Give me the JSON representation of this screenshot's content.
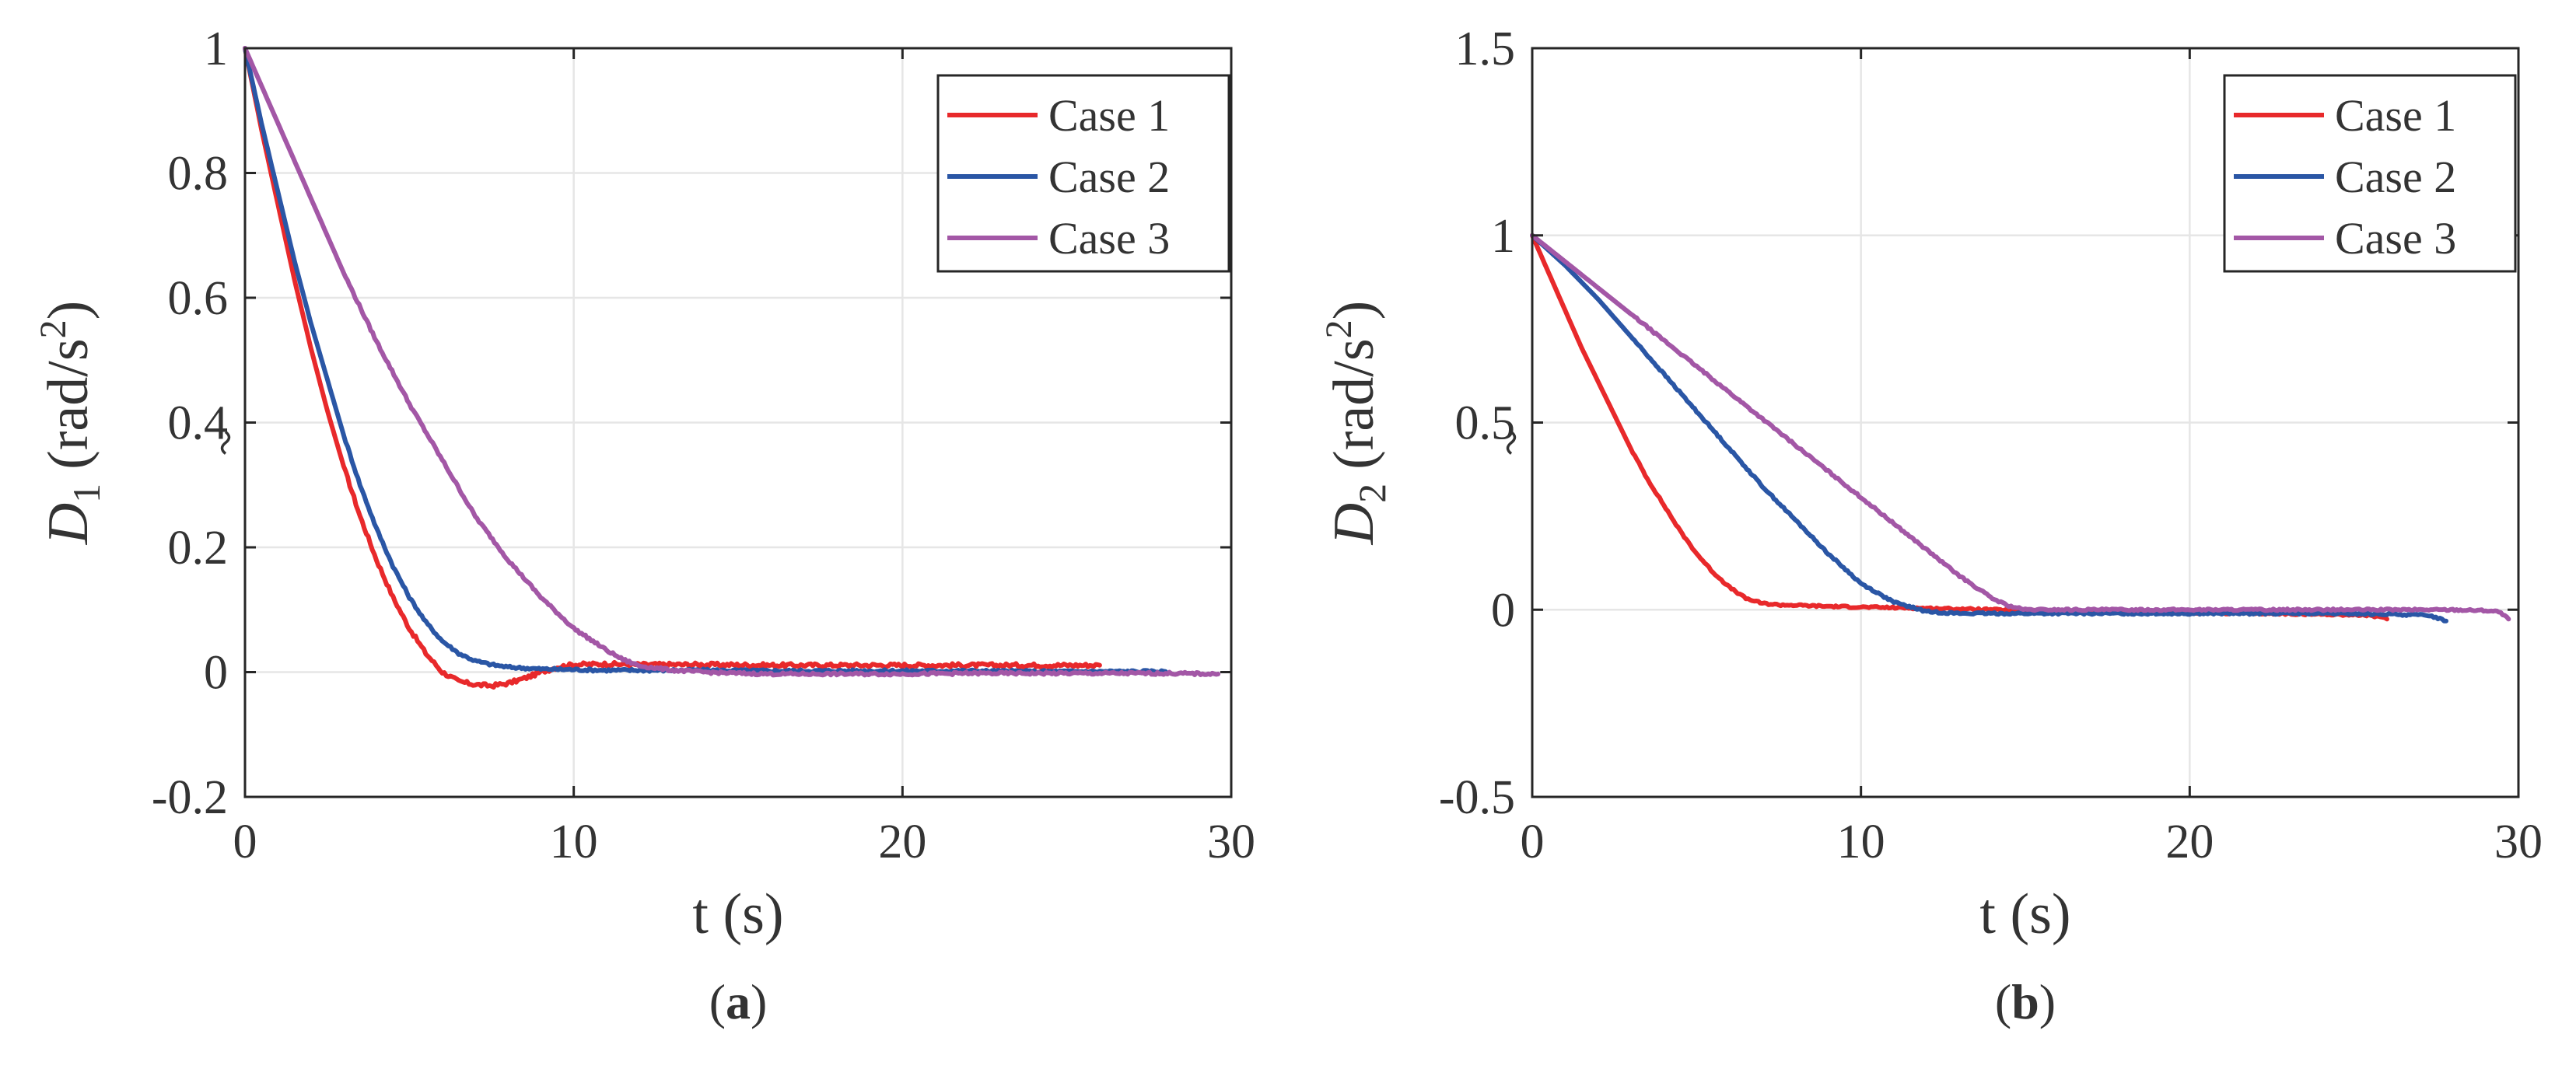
{
  "chart_data": [
    {
      "type": "line",
      "panel_label": "(a)",
      "panel_letter": "a",
      "xlabel": "t (s)",
      "ylabel_symbol": "D",
      "ylabel_subscript": "1",
      "ylabel_units_pre": "(rad/s",
      "ylabel_units_sup": "2",
      "ylabel_units_post": ")",
      "xlim": [
        0,
        30
      ],
      "ylim": [
        -0.2,
        1
      ],
      "xticks": [
        0,
        10,
        20,
        30
      ],
      "xtick_labels": [
        "0",
        "10",
        "20",
        "30"
      ],
      "yticks": [
        -0.2,
        0,
        0.2,
        0.4,
        0.6,
        0.8,
        1
      ],
      "ytick_labels": [
        "-0.2",
        "0",
        "0.2",
        "0.4",
        "0.6",
        "0.8",
        "1"
      ],
      "grid": true,
      "legend_position": "top-right",
      "series": [
        {
          "name": "Case 1",
          "color": "#e8292b",
          "noise": 0.003,
          "x": [
            0,
            0.5,
            1,
            1.5,
            2,
            2.5,
            3,
            3.5,
            4,
            4.5,
            5,
            5.5,
            6,
            6.5,
            7,
            7.5,
            8,
            8.5,
            9,
            9.5,
            10,
            11,
            12,
            14,
            16,
            18,
            20,
            22,
            24,
            26
          ],
          "y": [
            1,
            0.87,
            0.75,
            0.63,
            0.52,
            0.42,
            0.33,
            0.25,
            0.18,
            0.12,
            0.07,
            0.03,
            0.0,
            -0.015,
            -0.02,
            -0.022,
            -0.018,
            -0.01,
            0.0,
            0.008,
            0.012,
            0.013,
            0.012,
            0.012,
            0.011,
            0.011,
            0.011,
            0.011,
            0.011,
            0.011
          ]
        },
        {
          "name": "Case 2",
          "color": "#2a56a5",
          "noise": 0.002,
          "x": [
            0,
            0.5,
            1,
            1.5,
            2,
            2.5,
            3,
            3.5,
            4,
            4.5,
            5,
            5.5,
            6,
            6.5,
            7,
            7.5,
            8,
            9,
            10,
            11,
            12,
            14,
            16,
            18,
            20,
            22,
            24,
            26,
            28
          ],
          "y": [
            1,
            0.88,
            0.77,
            0.66,
            0.56,
            0.47,
            0.38,
            0.3,
            0.23,
            0.17,
            0.12,
            0.08,
            0.05,
            0.03,
            0.018,
            0.012,
            0.008,
            0.005,
            0.004,
            0.003,
            0.003,
            0.003,
            0.002,
            0.002,
            0.002,
            0.002,
            0.001,
            0.001,
            0.001
          ]
        },
        {
          "name": "Case 3",
          "color": "#a357a6",
          "noise": 0.002,
          "x": [
            0,
            1,
            2,
            3,
            4,
            5,
            6,
            7,
            8,
            9,
            10,
            11,
            11.5,
            12,
            13,
            14,
            15,
            16,
            18,
            20,
            22,
            24,
            26,
            28,
            29.6
          ],
          "y": [
            1,
            0.88,
            0.76,
            0.64,
            0.53,
            0.43,
            0.34,
            0.25,
            0.18,
            0.12,
            0.07,
            0.035,
            0.02,
            0.01,
            0.003,
            0.0,
            -0.002,
            -0.003,
            -0.003,
            -0.003,
            -0.002,
            -0.002,
            -0.002,
            -0.002,
            -0.003
          ]
        }
      ]
    },
    {
      "type": "line",
      "panel_label": "(b)",
      "panel_letter": "b",
      "xlabel": "t (s)",
      "ylabel_symbol": "D",
      "ylabel_subscript": "2",
      "ylabel_units_pre": "(rad/s",
      "ylabel_units_sup": "2",
      "ylabel_units_post": ")",
      "xlim": [
        0,
        30
      ],
      "ylim": [
        -0.5,
        1.5
      ],
      "xticks": [
        0,
        10,
        20,
        30
      ],
      "xtick_labels": [
        "0",
        "10",
        "20",
        "30"
      ],
      "yticks": [
        -0.5,
        0,
        0.5,
        1,
        1.5
      ],
      "ytick_labels": [
        "-0.5",
        "0",
        "0.5",
        "1",
        "1.5"
      ],
      "grid": true,
      "legend_position": "top-right",
      "series": [
        {
          "name": "Case 1",
          "color": "#e8292b",
          "noise": 0.0025,
          "x": [
            0,
            0.5,
            1,
            1.5,
            2,
            2.5,
            3,
            3.5,
            4,
            4.5,
            5,
            5.5,
            6,
            6.5,
            7,
            7.5,
            8,
            9,
            10,
            12,
            14,
            16,
            18,
            20,
            22,
            24,
            25.5,
            26
          ],
          "y": [
            1,
            0.9,
            0.8,
            0.7,
            0.61,
            0.52,
            0.43,
            0.35,
            0.28,
            0.21,
            0.15,
            0.1,
            0.06,
            0.03,
            0.017,
            0.013,
            0.012,
            0.009,
            0.007,
            0.004,
            0.0,
            -0.004,
            -0.006,
            -0.008,
            -0.01,
            -0.012,
            -0.015,
            -0.025
          ]
        },
        {
          "name": "Case 2",
          "color": "#2a56a5",
          "noise": 0.0025,
          "x": [
            0,
            1,
            2,
            3,
            4,
            5,
            6,
            7,
            8,
            9,
            10,
            11,
            12,
            13,
            14,
            16,
            18,
            20,
            22,
            24,
            26,
            27.3,
            27.8
          ],
          "y": [
            1,
            0.92,
            0.83,
            0.73,
            0.63,
            0.53,
            0.43,
            0.33,
            0.24,
            0.15,
            0.07,
            0.02,
            -0.005,
            -0.01,
            -0.01,
            -0.01,
            -0.01,
            -0.01,
            -0.01,
            -0.01,
            -0.012,
            -0.015,
            -0.03
          ]
        },
        {
          "name": "Case 3",
          "color": "#a357a6",
          "noise": 0.0025,
          "x": [
            0,
            1,
            2,
            3,
            4,
            5,
            6,
            7,
            8,
            9,
            10,
            11,
            12,
            13,
            14,
            14.5,
            15,
            16,
            18,
            20,
            22,
            24,
            26,
            28,
            29,
            29.4,
            29.7
          ],
          "y": [
            1,
            0.93,
            0.86,
            0.79,
            0.72,
            0.65,
            0.58,
            0.51,
            0.44,
            0.37,
            0.3,
            0.23,
            0.16,
            0.09,
            0.03,
            0.01,
            0.0,
            0.0,
            0.0,
            0.0,
            0.0,
            0.0,
            0.0,
            0.0,
            -0.002,
            -0.005,
            -0.025
          ]
        }
      ]
    }
  ]
}
